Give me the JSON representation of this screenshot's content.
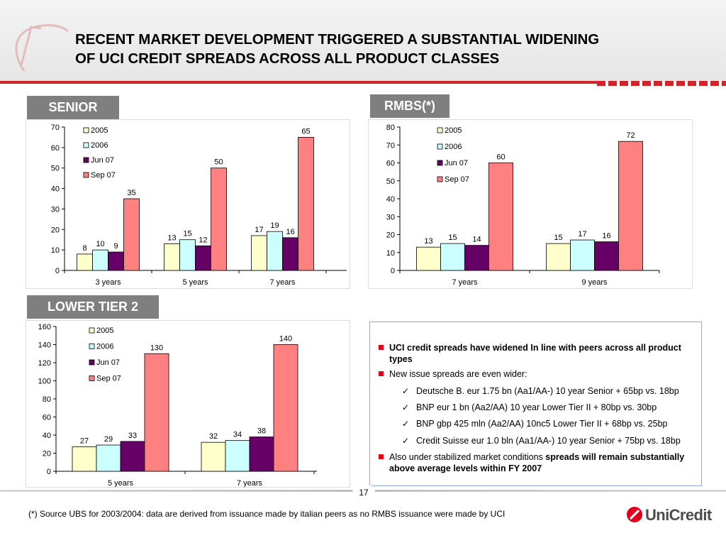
{
  "slide": {
    "title_line1": "RECENT MARKET DEVELOPMENT TRIGGERED A SUBSTANTIAL WIDENING",
    "title_line2": "OF UCI CREDIT SPREADS ACROSS ALL PRODUCT CLASSES",
    "page_number": "17",
    "footnote": "(*) Source UBS for 2003/2004: data are derived from issuance made by italian peers as no RMBS issuance were made by UCI",
    "brand": "UniCredit",
    "colors": {
      "accent_red": "#d0232a",
      "label_grey": "#7f7f7f",
      "bullet_red": "#e2001a"
    }
  },
  "panels": {
    "senior_label": "SENIOR",
    "rmbs_label": "RMBS(*)",
    "lower_tier2_label": "LOWER TIER 2"
  },
  "chart_data": [
    {
      "id": "senior",
      "type": "bar",
      "categories": [
        "3 years",
        "5 years",
        "7 years"
      ],
      "ylim": [
        0,
        70
      ],
      "yticks": [
        0,
        10,
        20,
        30,
        40,
        50,
        60,
        70
      ],
      "legend_position": "top-left",
      "series": [
        {
          "name": "2005",
          "color": "#ffffcc",
          "values": [
            8,
            13,
            17
          ]
        },
        {
          "name": "2006",
          "color": "#ccffff",
          "values": [
            10,
            15,
            19
          ]
        },
        {
          "name": "Jun 07",
          "color": "#660066",
          "values": [
            9,
            12,
            16
          ]
        },
        {
          "name": "Sep 07",
          "color": "#ff8080",
          "values": [
            35,
            50,
            65
          ]
        }
      ]
    },
    {
      "id": "rmbs",
      "type": "bar",
      "categories": [
        "7 years",
        "9 years"
      ],
      "ylim": [
        0,
        80
      ],
      "yticks": [
        0,
        10,
        20,
        30,
        40,
        50,
        60,
        70,
        80
      ],
      "legend_position": "top-left",
      "series": [
        {
          "name": "2005",
          "color": "#ffffcc",
          "values": [
            13,
            15
          ]
        },
        {
          "name": "2006",
          "color": "#ccffff",
          "values": [
            15,
            17
          ]
        },
        {
          "name": "Jun 07",
          "color": "#660066",
          "values": [
            14,
            16
          ]
        },
        {
          "name": "Sep 07",
          "color": "#ff8080",
          "values": [
            60,
            72
          ]
        }
      ]
    },
    {
      "id": "lower-tier-2",
      "type": "bar",
      "categories": [
        "5 years",
        "7 years"
      ],
      "ylim": [
        0,
        160
      ],
      "yticks": [
        0,
        20,
        40,
        60,
        80,
        100,
        120,
        140,
        160
      ],
      "legend_position": "top-left",
      "series": [
        {
          "name": "2005",
          "color": "#ffffcc",
          "values": [
            27,
            32
          ]
        },
        {
          "name": "2006",
          "color": "#ccffff",
          "values": [
            29,
            34
          ]
        },
        {
          "name": "Jun 07",
          "color": "#660066",
          "values": [
            33,
            38
          ]
        },
        {
          "name": "Sep 07",
          "color": "#ff8080",
          "values": [
            130,
            140
          ]
        }
      ]
    }
  ],
  "bullets": {
    "b1": "UCI credit spreads have widened In line with peers  across all product types",
    "b2": "New issue spreads are even wider:",
    "c1": "Deutsche B. eur 1.75 bn (Aa1/AA-) 10 year Senior + 65bp vs. 18bp",
    "c2": "BNP eur 1 bn (Aa2/AA) 10 year Lower Tier II + 80bp vs. 30bp",
    "c3": "BNP gbp 425 mln (Aa2/AA) 10nc5 Lower Tier II + 68bp vs. 25bp",
    "c4": "Credit Suisse eur 1.0 bln (Aa1/AA-) 10 year Senior + 75bp vs. 18bp",
    "b3_normal": "Also under stabilized market conditions ",
    "b3_bold": "spreads will remain substantially above average levels within FY 2007"
  }
}
